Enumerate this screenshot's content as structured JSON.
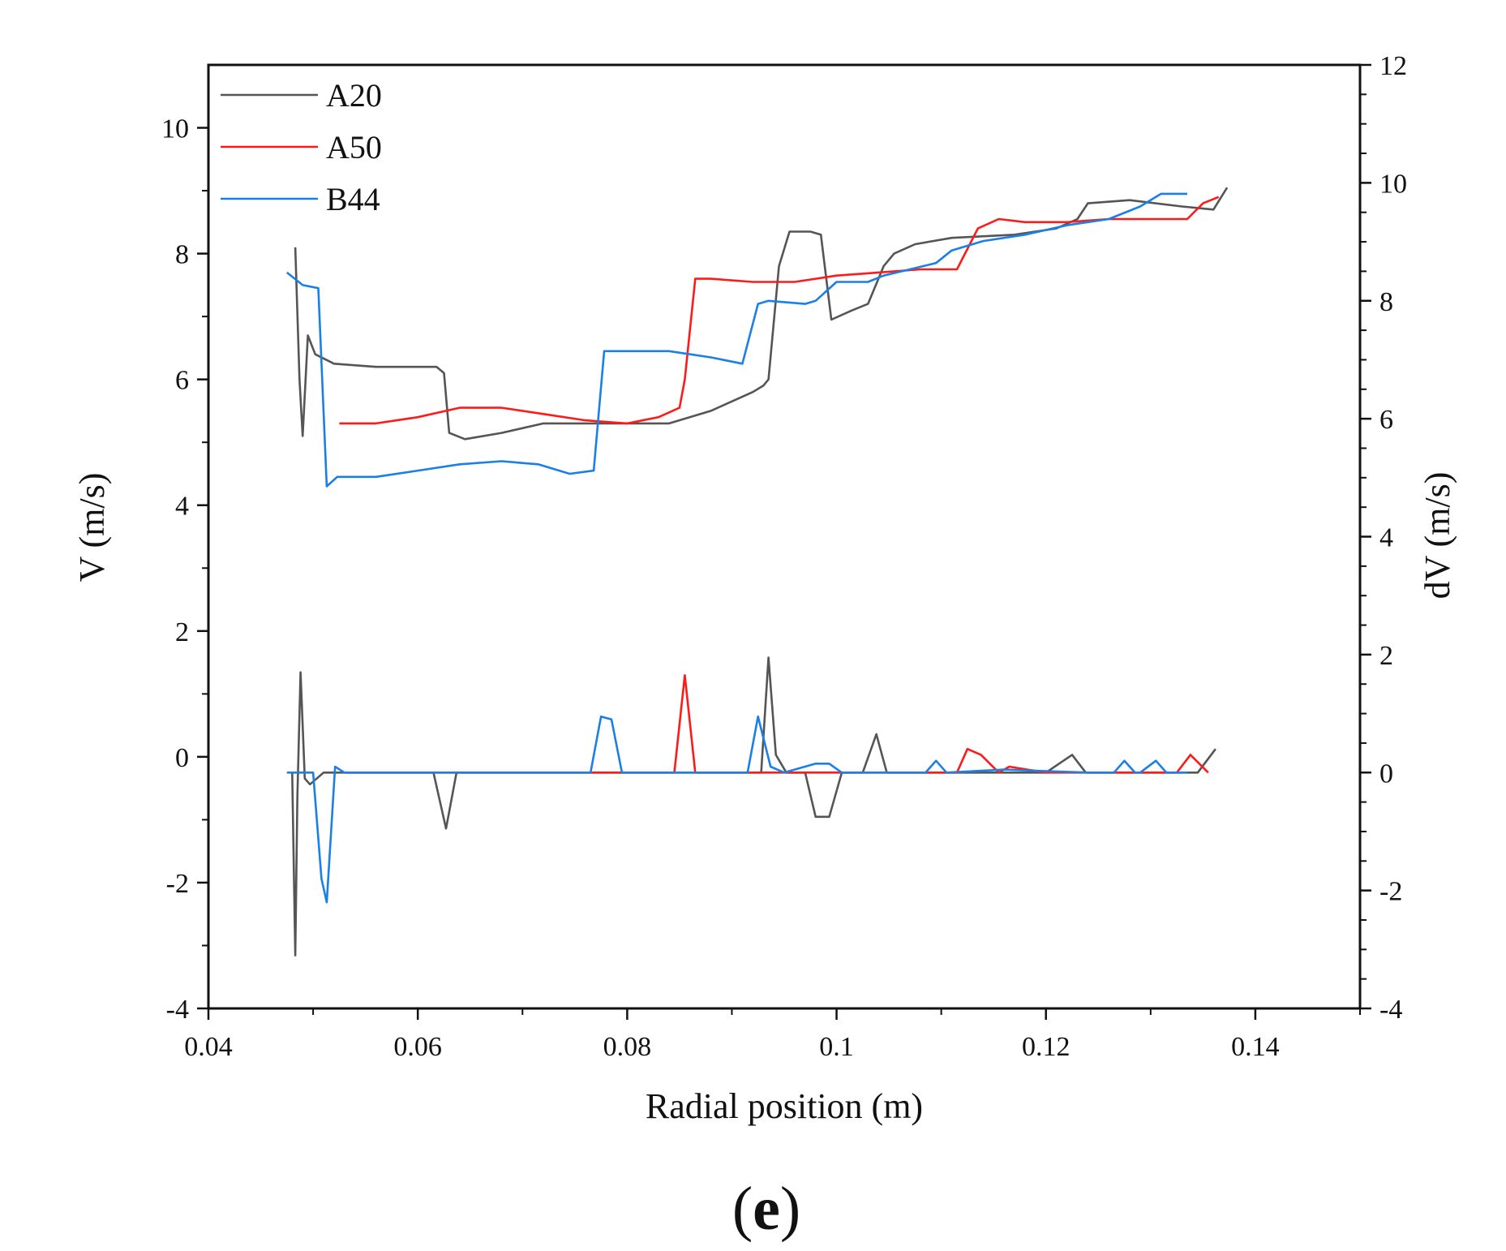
{
  "chart_data": {
    "type": "line",
    "xlabel": "Radial position (m)",
    "ylabel": "V (m/s)",
    "y2label": "dV (m/s)",
    "panel_label": {
      "open": "(",
      "letter": "e",
      "close": ")"
    },
    "xlim": [
      0.04,
      0.15
    ],
    "ylim": [
      -4,
      11
    ],
    "y2lim": [
      -4,
      12
    ],
    "xticks": [
      0.04,
      0.06,
      0.08,
      0.1,
      0.12,
      0.14
    ],
    "xtick_labels": [
      "0.04",
      "0.06",
      "0.08",
      "0.1",
      "0.12",
      "0.14"
    ],
    "yticks": [
      -4,
      -2,
      0,
      2,
      4,
      6,
      8,
      10
    ],
    "ytick_labels": [
      "-4",
      "-2",
      "0",
      "2",
      "4",
      "6",
      "8",
      "10"
    ],
    "y2ticks": [
      -4,
      -2,
      0,
      2,
      4,
      6,
      8,
      10,
      12
    ],
    "y2tick_labels": [
      "-4",
      "-2",
      "0",
      "2",
      "4",
      "6",
      "8",
      "10",
      "12"
    ],
    "legend_position": "top-left",
    "grid": false,
    "colors": {
      "A20": "#555555",
      "A50": "#ff1a1a",
      "B44": "#1a7fe6"
    },
    "series": [
      {
        "name": "A20",
        "axis": "left",
        "x": [
          0.0483,
          0.0487,
          0.049,
          0.0495,
          0.0502,
          0.052,
          0.056,
          0.06,
          0.0618,
          0.0625,
          0.063,
          0.0645,
          0.068,
          0.072,
          0.078,
          0.084,
          0.088,
          0.092,
          0.093,
          0.0935,
          0.0945,
          0.0955,
          0.0975,
          0.0985,
          0.0995,
          0.1015,
          0.103,
          0.1045,
          0.1055,
          0.1075,
          0.111,
          0.117,
          0.121,
          0.123,
          0.124,
          0.128,
          0.133,
          0.136,
          0.1373
        ],
        "y": [
          8.1,
          6.0,
          5.1,
          6.7,
          6.4,
          6.25,
          6.2,
          6.2,
          6.2,
          6.1,
          5.15,
          5.05,
          5.15,
          5.3,
          5.3,
          5.3,
          5.5,
          5.8,
          5.9,
          6.0,
          7.8,
          8.35,
          8.35,
          8.3,
          6.95,
          7.1,
          7.2,
          7.8,
          8.0,
          8.15,
          8.25,
          8.3,
          8.4,
          8.55,
          8.8,
          8.85,
          8.75,
          8.7,
          9.05
        ]
      },
      {
        "name": "A50",
        "axis": "left",
        "x": [
          0.0525,
          0.056,
          0.06,
          0.064,
          0.068,
          0.072,
          0.076,
          0.08,
          0.083,
          0.085,
          0.0855,
          0.0865,
          0.088,
          0.092,
          0.096,
          0.1,
          0.104,
          0.108,
          0.1115,
          0.1135,
          0.1155,
          0.118,
          0.122,
          0.126,
          0.13,
          0.1335,
          0.135,
          0.1365
        ],
        "y": [
          5.3,
          5.3,
          5.4,
          5.55,
          5.55,
          5.45,
          5.35,
          5.3,
          5.4,
          5.55,
          6.0,
          7.6,
          7.6,
          7.55,
          7.55,
          7.65,
          7.7,
          7.75,
          7.75,
          8.4,
          8.55,
          8.5,
          8.5,
          8.55,
          8.55,
          8.55,
          8.8,
          8.9
        ]
      },
      {
        "name": "B44",
        "axis": "left",
        "x": [
          0.0475,
          0.049,
          0.0505,
          0.0513,
          0.0523,
          0.056,
          0.06,
          0.064,
          0.068,
          0.0715,
          0.0745,
          0.0768,
          0.0778,
          0.08,
          0.084,
          0.088,
          0.091,
          0.0925,
          0.0935,
          0.097,
          0.098,
          0.1,
          0.103,
          0.1045,
          0.107,
          0.1095,
          0.111,
          0.114,
          0.118,
          0.122,
          0.126,
          0.129,
          0.131,
          0.1335
        ],
        "y": [
          7.7,
          7.5,
          7.45,
          4.3,
          4.45,
          4.45,
          4.55,
          4.65,
          4.7,
          4.65,
          4.5,
          4.55,
          6.45,
          6.45,
          6.45,
          6.35,
          6.25,
          7.2,
          7.25,
          7.2,
          7.25,
          7.55,
          7.55,
          7.65,
          7.75,
          7.85,
          8.05,
          8.2,
          8.3,
          8.45,
          8.55,
          8.75,
          8.95,
          8.95
        ]
      },
      {
        "name": "A20 dV",
        "axis": "right",
        "legend": false,
        "color_of": "A20",
        "x": [
          0.048,
          0.0483,
          0.0485,
          0.0488,
          0.0492,
          0.0497,
          0.051,
          0.054,
          0.058,
          0.06,
          0.0615,
          0.0627,
          0.0637,
          0.066,
          0.072,
          0.08,
          0.088,
          0.092,
          0.0928,
          0.0935,
          0.0942,
          0.0952,
          0.097,
          0.098,
          0.0993,
          0.1005,
          0.1025,
          0.1038,
          0.1048,
          0.106,
          0.11,
          0.115,
          0.12,
          0.1225,
          0.1238,
          0.126,
          0.13,
          0.1345,
          0.1362
        ],
        "y": [
          0.0,
          -3.1,
          -0.4,
          1.7,
          -0.1,
          -0.2,
          0.0,
          0.0,
          0.0,
          0.0,
          0.0,
          -0.95,
          0.0,
          0.0,
          0.0,
          0.0,
          0.0,
          0.0,
          0.0,
          1.95,
          0.3,
          0.0,
          0.0,
          -0.75,
          -0.75,
          0.0,
          0.0,
          0.65,
          0.0,
          0.0,
          0.0,
          0.0,
          0.0,
          0.3,
          0.0,
          0.0,
          0.0,
          0.0,
          0.4
        ]
      },
      {
        "name": "A50 dV",
        "axis": "right",
        "legend": false,
        "color_of": "A50",
        "x": [
          0.053,
          0.06,
          0.07,
          0.08,
          0.0845,
          0.0855,
          0.0865,
          0.09,
          0.1,
          0.1115,
          0.1125,
          0.1138,
          0.1155,
          0.1165,
          0.12,
          0.128,
          0.1325,
          0.1338,
          0.1355
        ],
        "y": [
          0.0,
          0.0,
          0.0,
          0.0,
          0.0,
          1.65,
          0.0,
          0.0,
          0.0,
          0.0,
          0.4,
          0.3,
          0.0,
          0.1,
          0.0,
          0.0,
          0.0,
          0.3,
          0.0
        ]
      },
      {
        "name": "B44 dV",
        "axis": "right",
        "legend": false,
        "color_of": "B44",
        "x": [
          0.0475,
          0.05,
          0.0508,
          0.0513,
          0.0521,
          0.053,
          0.06,
          0.07,
          0.0765,
          0.0775,
          0.0785,
          0.0795,
          0.085,
          0.0915,
          0.0925,
          0.0937,
          0.095,
          0.098,
          0.0993,
          0.1005,
          0.104,
          0.1085,
          0.1095,
          0.1105,
          0.116,
          0.124,
          0.1265,
          0.1275,
          0.1285,
          0.129,
          0.1305,
          0.1315,
          0.1335
        ],
        "y": [
          0.0,
          0.0,
          -1.8,
          -2.2,
          0.1,
          0.0,
          0.0,
          0.0,
          0.0,
          0.95,
          0.9,
          0.0,
          0.0,
          0.0,
          0.95,
          0.1,
          0.0,
          0.15,
          0.15,
          0.0,
          0.0,
          0.0,
          0.2,
          0.0,
          0.05,
          0.0,
          0.0,
          0.2,
          0.0,
          0.0,
          0.2,
          0.0,
          0.0
        ]
      }
    ]
  }
}
